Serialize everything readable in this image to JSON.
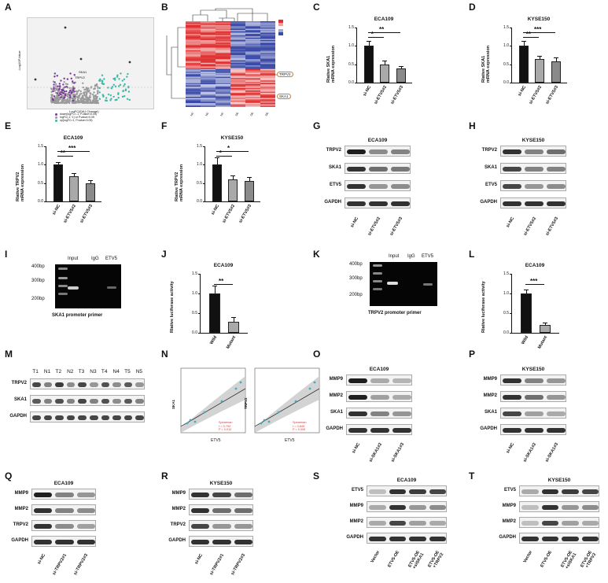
{
  "panels": {
    "A": {
      "label": "A",
      "ylabel": "-Log10P.Value",
      "xlabel": "LogFC(EdU Change)",
      "genes": [
        "SKA1",
        "TRPV2"
      ],
      "legend": [
        "down(logFC<-1, P.value<0.05)",
        "logFC(-1~1) or P.value>0.05",
        "up(logFC>1, P.value<0.05)"
      ]
    },
    "B": {
      "label": "B",
      "callouts": [
        "TRPV2",
        "SKA1"
      ],
      "cols": [
        "NC",
        "NC",
        "NC",
        "OE",
        "OE",
        "OE"
      ],
      "colors": {
        "high": "#e03030",
        "low": "#3a4aa8"
      }
    },
    "C": {
      "label": "C",
      "title": "ECA109",
      "ylabel": "Rlative SKA1\nmRNA expression",
      "ticks": [
        "0.0",
        "0.5",
        "1.0",
        "1.5"
      ],
      "sig": [
        "*",
        "**"
      ]
    },
    "D": {
      "label": "D",
      "title": "KYSE150",
      "ylabel": "Rlative SKA1\nmRNA expression",
      "ticks": [
        "0.0",
        "0.5",
        "1.0",
        "1.5"
      ],
      "sig": [
        "**",
        "***"
      ]
    },
    "E": {
      "label": "E",
      "title": "ECA109",
      "ylabel": "Rlative TRPV2\nmRNA expression",
      "ticks": [
        "0.0",
        "0.5",
        "1.0",
        "1.5"
      ],
      "sig": [
        "**",
        "***"
      ]
    },
    "F": {
      "label": "F",
      "title": "KYSE150",
      "ylabel": "Rlative TRPV2\nmRNA expression",
      "ticks": [
        "0.0",
        "0.5",
        "1.0",
        "1.5"
      ],
      "sig": [
        "*",
        "*"
      ]
    },
    "G": {
      "label": "G",
      "title": "ECA109",
      "rows": [
        "TRPV2",
        "SKA1",
        "ETV5",
        "GAPDH"
      ],
      "lanes": [
        "si-NC",
        "si-ETV5#2",
        "si-ETV5#3"
      ]
    },
    "H": {
      "label": "H",
      "title": "KYSE150",
      "rows": [
        "TRPV2",
        "SKA1",
        "ETV5",
        "GAPDH"
      ],
      "lanes": [
        "si-NC",
        "si-ETV5#2",
        "si-ETV5#3"
      ]
    },
    "I": {
      "label": "I",
      "lanes": [
        "Input",
        "IgG",
        "ETV5"
      ],
      "markers": [
        "400bp",
        "300bp",
        "200bp"
      ],
      "caption": "SKA1 promoter primer"
    },
    "J": {
      "label": "J",
      "title": "ECA109",
      "ylabel": "Rlative luciferase activity",
      "ticks": [
        "0.0",
        "0.5",
        "1.0",
        "1.5"
      ],
      "sig": "**",
      "cats": [
        "Wild",
        "Mutant"
      ]
    },
    "K": {
      "label": "K",
      "lanes": [
        "Input",
        "IgG",
        "ETV5"
      ],
      "markers": [
        "400bp",
        "300bp",
        "200bp"
      ],
      "caption": "TRPV2 promoter primer"
    },
    "L": {
      "label": "L",
      "title": "ECA109",
      "ylabel": "Rlative luciferase activity",
      "ticks": [
        "0.0",
        "0.5",
        "1.0",
        "1.5"
      ],
      "sig": "***",
      "cats": [
        "Wild",
        "Mutant"
      ]
    },
    "M": {
      "label": "M",
      "lanes": [
        "T1",
        "N1",
        "T2",
        "N2",
        "T3",
        "N3",
        "T4",
        "N4",
        "T5",
        "N5"
      ],
      "rows": [
        "TRPV2",
        "SKA1",
        "GAPDH"
      ]
    },
    "N": {
      "label": "N",
      "left": {
        "ylabel": "SKA1",
        "xlabel": "ETV5",
        "stat": [
          "Spearman",
          "r = 0.792",
          "P = 0.012"
        ]
      },
      "right": {
        "ylabel": "TRPV2",
        "xlabel": "ETV5",
        "stat": [
          "Spearman",
          "r = 0.845",
          "P = 0.005"
        ]
      }
    },
    "O": {
      "label": "O",
      "title": "ECA109",
      "rows": [
        "MMP9",
        "MMP2",
        "SKA1",
        "GAPDH"
      ],
      "lanes": [
        "si-NC",
        "si-SKA1#2",
        "si-SKA1#3"
      ]
    },
    "P": {
      "label": "P",
      "title": "KYSE150",
      "rows": [
        "MMP9",
        "MMP2",
        "SKA1",
        "GAPDH"
      ],
      "lanes": [
        "si-NC",
        "si-SKA1#2",
        "si-SKA1#3"
      ]
    },
    "Q": {
      "label": "Q",
      "title": "ECA109",
      "rows": [
        "MMP9",
        "MMP2",
        "TRPV2",
        "GAPDH"
      ],
      "lanes": [
        "si-NC",
        "si-TRPV2#1",
        "si-TRPV2#3"
      ]
    },
    "R": {
      "label": "R",
      "title": "KYSE150",
      "rows": [
        "MMP9",
        "MMP2",
        "TRPV2",
        "GAPDH"
      ],
      "lanes": [
        "si-NC",
        "si-TRPV2#1",
        "si-TRPV2#3"
      ]
    },
    "S": {
      "label": "S",
      "title": "ECA109",
      "rows": [
        "ETV5",
        "MMP9",
        "MMP2",
        "GAPDH"
      ],
      "lanes": [
        "Vector",
        "ETV5-OE",
        "ETV5-OE\n+siSKA1",
        "ETV5-OE\n+TRPV2"
      ]
    },
    "T": {
      "label": "T",
      "title": "KYSE150",
      "rows": [
        "ETV5",
        "MMP9",
        "MMP2",
        "GAPDH"
      ],
      "lanes": [
        "Vector",
        "ETV5-OE",
        "ETV5-OE\n+siSKA1",
        "ETV5-OE\n+TRPV2"
      ]
    }
  },
  "bar_charts": {
    "C": {
      "cats": [
        "si-NC",
        "si-ETV5#2",
        "si-ETV5#3"
      ],
      "values": [
        1.0,
        0.5,
        0.38
      ],
      "err": [
        0.12,
        0.08,
        0.05
      ],
      "ylim": [
        0,
        1.5
      ]
    },
    "D": {
      "cats": [
        "si-NC",
        "si-ETV5#2",
        "si-ETV5#3"
      ],
      "values": [
        1.0,
        0.64,
        0.58
      ],
      "err": [
        0.12,
        0.07,
        0.08
      ],
      "ylim": [
        0,
        1.5
      ]
    },
    "E": {
      "cats": [
        "si-NC",
        "si-ETV5#2",
        "si-ETV5#3"
      ],
      "values": [
        1.0,
        0.68,
        0.5
      ],
      "err": [
        0.06,
        0.06,
        0.05
      ],
      "ylim": [
        0,
        1.5
      ]
    },
    "F": {
      "cats": [
        "si-NC",
        "si-ETV5#2",
        "si-ETV5#3"
      ],
      "values": [
        1.0,
        0.6,
        0.55
      ],
      "err": [
        0.18,
        0.08,
        0.09
      ],
      "ylim": [
        0,
        1.5
      ]
    },
    "J": {
      "cats": [
        "Wild",
        "Mutant"
      ],
      "values": [
        1.0,
        0.28
      ],
      "err": [
        0.18,
        0.1
      ],
      "ylim": [
        0,
        1.5
      ]
    },
    "L": {
      "cats": [
        "Wild",
        "Mutant"
      ],
      "values": [
        1.0,
        0.2
      ],
      "err": [
        0.08,
        0.05
      ],
      "ylim": [
        0,
        1.5
      ]
    }
  }
}
